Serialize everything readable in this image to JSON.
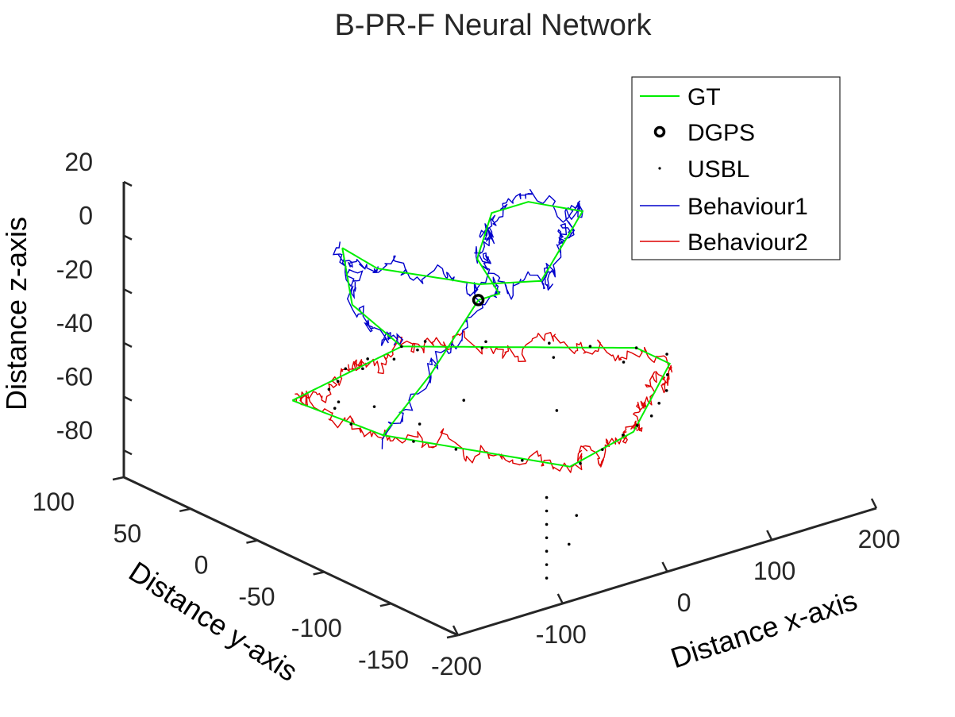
{
  "chart_data": {
    "type": "line3d",
    "title": "B-PR-F Neural Network",
    "xlabel": "Distance x-axis",
    "ylabel": "Distance y-axis",
    "zlabel": "Distance z-axis",
    "xlim": [
      -200,
      200
    ],
    "ylim": [
      -150,
      100
    ],
    "zlim": [
      -90,
      20
    ],
    "x_ticks": [
      "-200",
      "-100",
      "0",
      "100",
      "200"
    ],
    "y_ticks": [
      "-150",
      "-100",
      "-50",
      "0",
      "50",
      "100"
    ],
    "z_ticks": [
      "-80",
      "-60",
      "-40",
      "-20",
      "0",
      "20"
    ],
    "grid": false,
    "legend_position": "top-right",
    "colors": {
      "gt": "#00ee00",
      "dgps": "#000000",
      "usbl": "#000000",
      "behaviour1": "#0000cc",
      "behaviour2": "#dd0000"
    },
    "legend": [
      {
        "key": "gt",
        "label": "GT",
        "marker": "line"
      },
      {
        "key": "dgps",
        "label": "DGPS",
        "marker": "circle"
      },
      {
        "key": "usbl",
        "label": "USBL",
        "marker": "dot"
      },
      {
        "key": "behaviour1",
        "label": "Behaviour1",
        "marker": "line"
      },
      {
        "key": "behaviour2",
        "label": "Behaviour2",
        "marker": "line"
      }
    ],
    "series": {
      "gt_upper": {
        "x": [
          -40,
          -20,
          10,
          75,
          110,
          130,
          20,
          -20,
          -60,
          -55
        ],
        "y": [
          -40,
          -40,
          0,
          40,
          40,
          15,
          -40,
          -25,
          20,
          50
        ],
        "z": [
          -10,
          -10,
          -10,
          -10,
          -10,
          -10,
          -10,
          -10,
          -10,
          -10
        ]
      },
      "gt_lower": {
        "x": [
          -90,
          40,
          175,
          175,
          70,
          -10,
          -80,
          -90
        ],
        "y": [
          60,
          80,
          10,
          -15,
          -70,
          -85,
          0,
          60
        ],
        "z": [
          -65,
          -65,
          -65,
          -65,
          -65,
          -65,
          -65,
          -65
        ]
      },
      "gt_transitions": [
        {
          "x": [
            -40,
            -60,
            -80
          ],
          "y": [
            -40,
            -20,
            0
          ],
          "z": [
            -10,
            -40,
            -65
          ]
        },
        {
          "x": [
            -55,
            -20,
            40
          ],
          "y": [
            50,
            70,
            80
          ],
          "z": [
            -10,
            -40,
            -65
          ]
        }
      ],
      "dgps": {
        "x": [
          -40
        ],
        "y": [
          -40
        ],
        "z": [
          -10
        ]
      },
      "usbl": {
        "x": [
          -75,
          -55,
          -20,
          5,
          40,
          60,
          95,
          130,
          150,
          175,
          185,
          160,
          140,
          120,
          100,
          80,
          60,
          30,
          0,
          -30,
          -55,
          -70,
          -85,
          -65,
          -40,
          -10,
          20,
          45,
          85,
          115,
          150,
          -30,
          -10,
          35,
          -45,
          10,
          -50
        ],
        "y": [
          40,
          60,
          75,
          78,
          80,
          78,
          60,
          40,
          25,
          10,
          -5,
          -25,
          -40,
          -50,
          -60,
          -65,
          -70,
          -78,
          -85,
          -65,
          -35,
          -15,
          20,
          45,
          65,
          70,
          70,
          72,
          55,
          25,
          0,
          -100,
          -90,
          -40,
          0,
          10,
          30
        ],
        "z": [
          -65,
          -65,
          -65,
          -65,
          -65,
          -65,
          -65,
          -65,
          -65,
          -65,
          -65,
          -65,
          -65,
          -65,
          -65,
          -65,
          -65,
          -65,
          -65,
          -65,
          -65,
          -65,
          -65,
          -65,
          -65,
          -65,
          -65,
          -65,
          -65,
          -65,
          -65,
          -88,
          -82,
          -60,
          -65,
          -65,
          -65
        ]
      },
      "usbl_column": {
        "x": -45,
        "y": -95,
        "z": [
          -70,
          -75,
          -80,
          -85,
          -90,
          -95,
          -100
        ]
      },
      "noise": {
        "behaviour1": 3.0,
        "behaviour2": 2.5
      }
    }
  }
}
